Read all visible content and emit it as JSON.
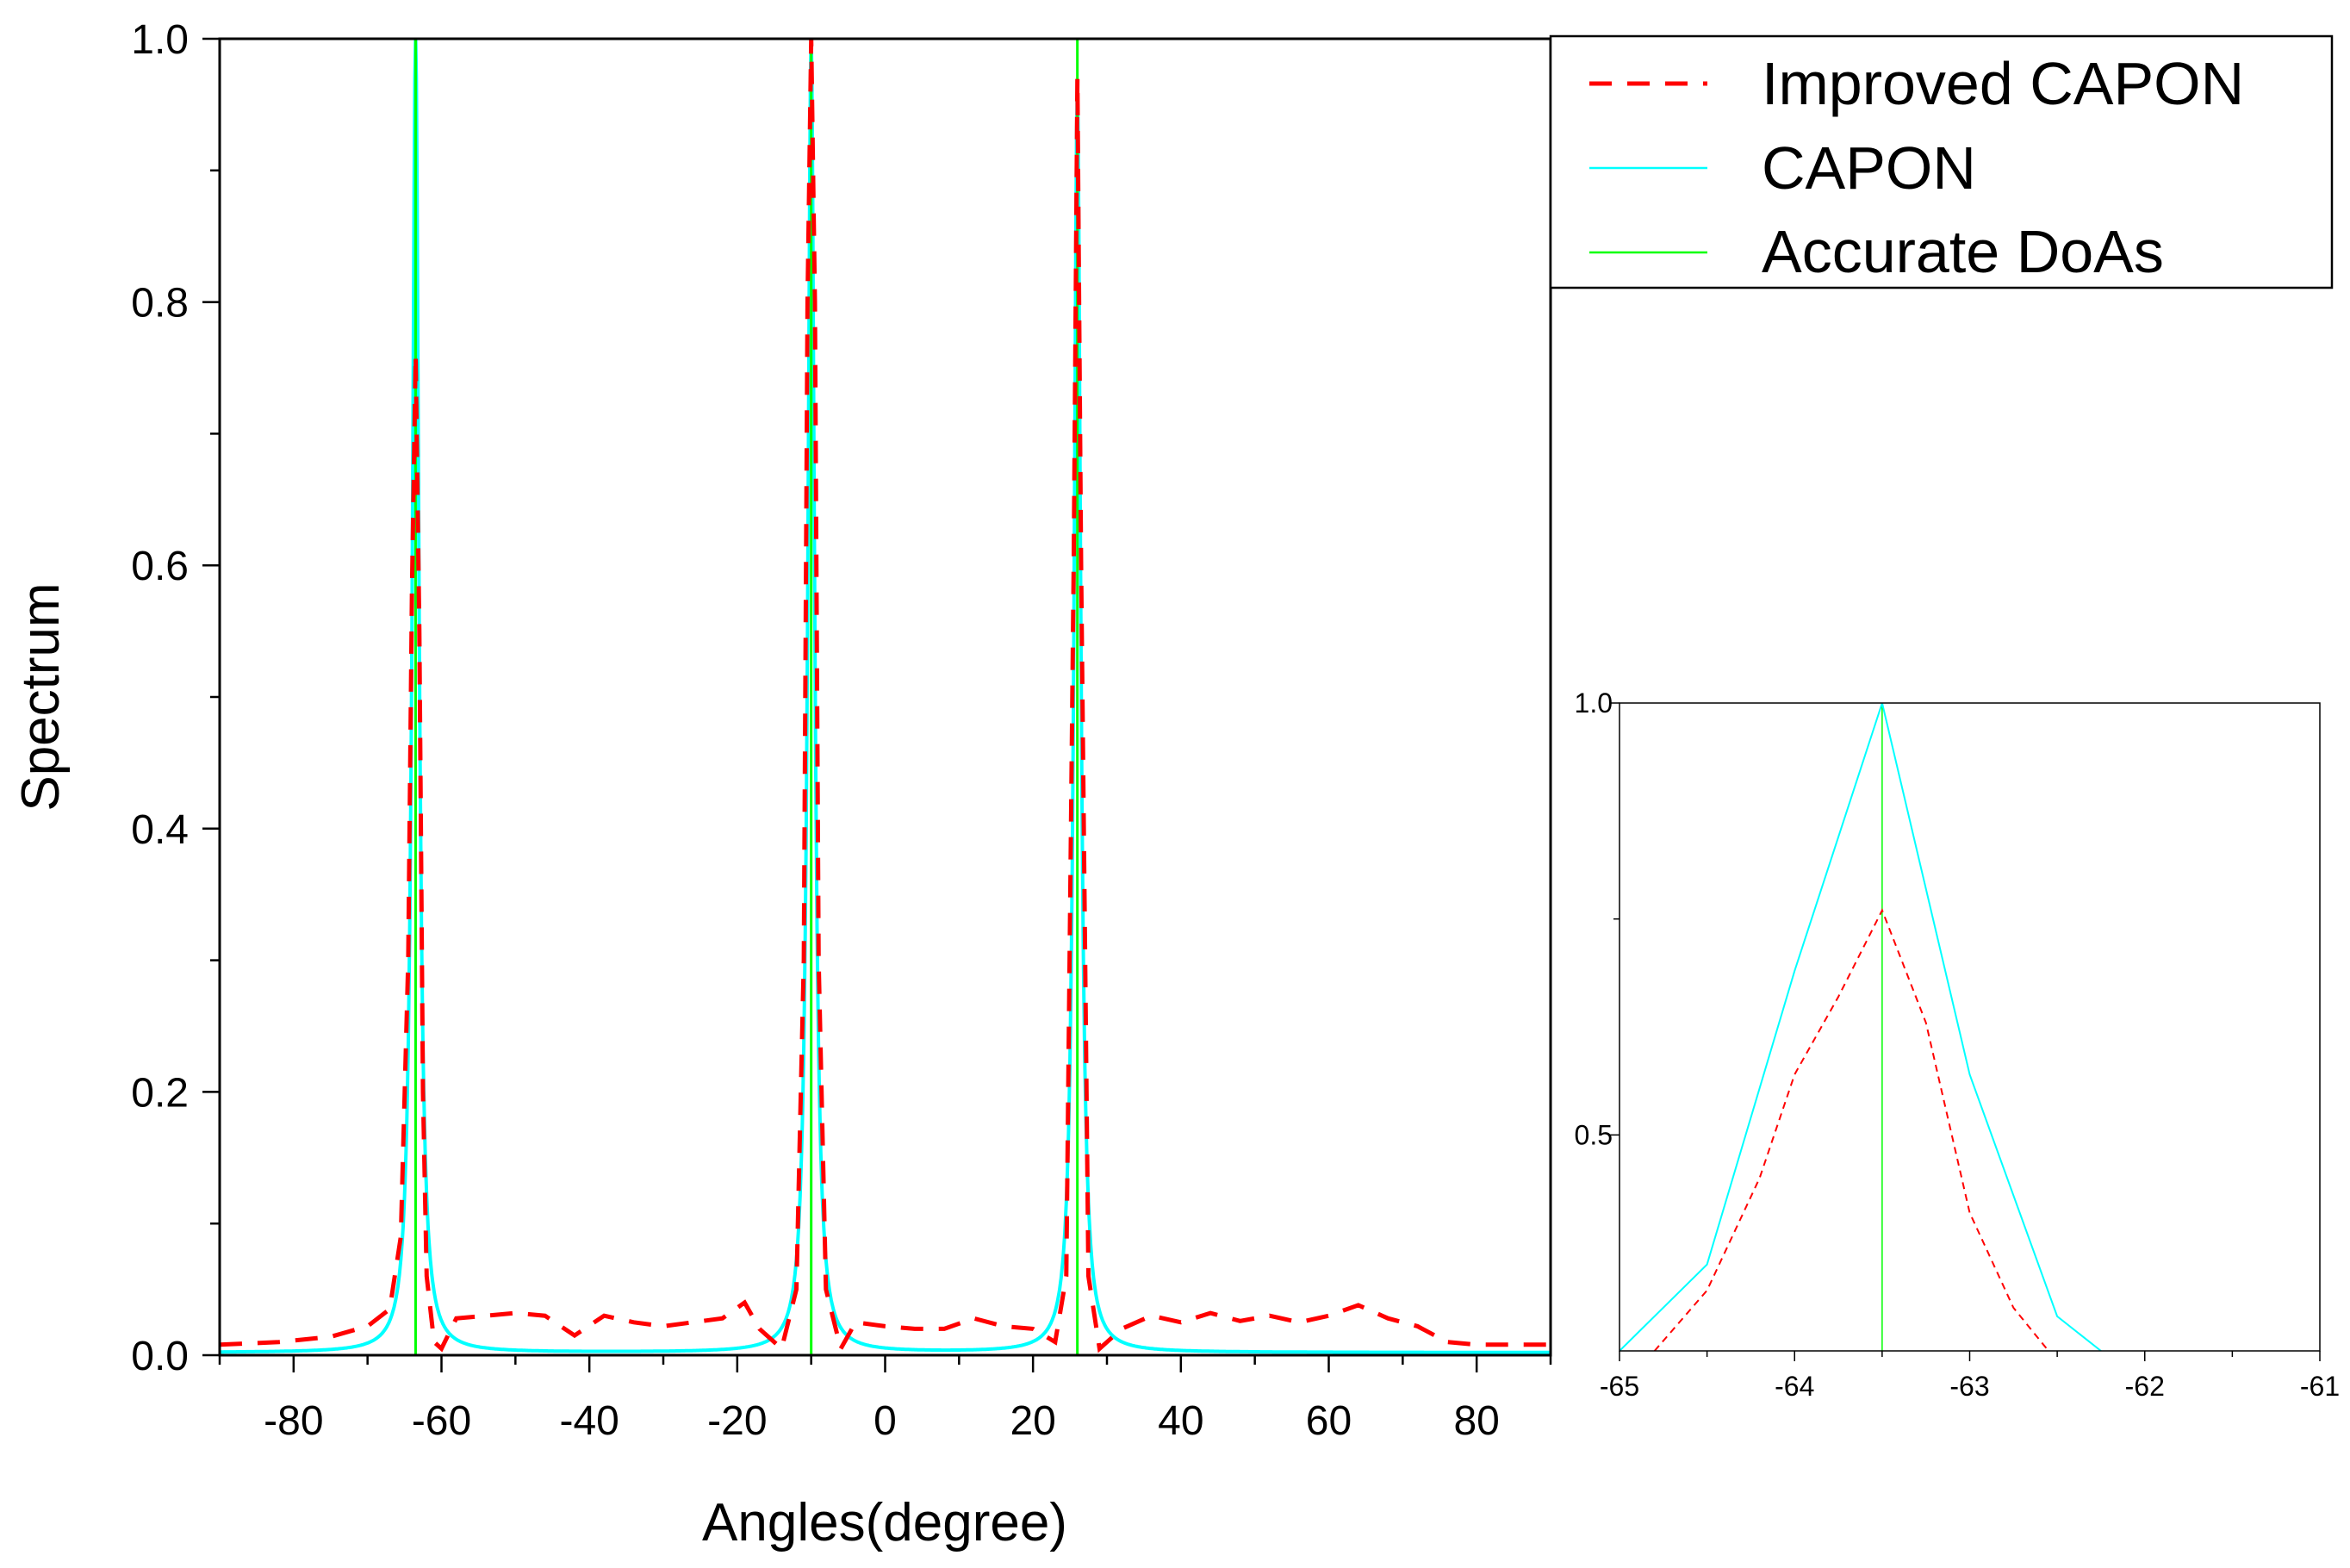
{
  "chart_data": [
    {
      "type": "line",
      "title": "",
      "xlabel": "Angles(degree)",
      "ylabel": "Spectrum",
      "xlim": [
        -90,
        90
      ],
      "ylim": [
        0,
        1.0
      ],
      "x_ticks": [
        -80,
        -60,
        -40,
        -20,
        0,
        20,
        40,
        60,
        80
      ],
      "y_ticks": [
        0.0,
        0.2,
        0.4,
        0.6,
        0.8,
        1.0
      ],
      "x_tick_labels": [
        "-80",
        "-60",
        "-40",
        "-20",
        "0",
        "20",
        "40",
        "60",
        "80"
      ],
      "y_tick_labels": [
        "0.0",
        "0.2",
        "0.4",
        "0.6",
        "0.8",
        "1.0"
      ],
      "legend": {
        "position": "top-right outside",
        "entries": [
          "Improved CAPON",
          "CAPON",
          "Accurate DoAs"
        ]
      },
      "true_doas": [
        -63.5,
        -10,
        26
      ],
      "series": [
        {
          "name": "Improved CAPON",
          "style": "dashed",
          "color": "#ff0000",
          "x": [
            -90,
            -82,
            -75,
            -70,
            -67,
            -65.5,
            -64.5,
            -64,
            -63.5,
            -63,
            -62.5,
            -62,
            -61,
            -60,
            -58,
            -54,
            -50,
            -46,
            -42,
            -38,
            -34,
            -30,
            -26,
            -22,
            -19,
            -17,
            -14,
            -12,
            -11,
            -10.5,
            -10,
            -9.5,
            -9,
            -8,
            -6,
            -4,
            0,
            4,
            8,
            12,
            16,
            20,
            23,
            24.5,
            25.5,
            26,
            26.5,
            27.5,
            29,
            32,
            36,
            40,
            44,
            48,
            52,
            56,
            60,
            64,
            68,
            72,
            76,
            80,
            84,
            90
          ],
          "y": [
            0.008,
            0.01,
            0.014,
            0.022,
            0.035,
            0.09,
            0.3,
            0.58,
            0.76,
            0.55,
            0.2,
            0.06,
            0.01,
            0.005,
            0.028,
            0.03,
            0.032,
            0.03,
            0.015,
            0.03,
            0.025,
            0.022,
            0.025,
            0.028,
            0.04,
            0.02,
            0.005,
            0.05,
            0.3,
            0.8,
            1.0,
            0.8,
            0.3,
            0.05,
            0.005,
            0.025,
            0.022,
            0.02,
            0.02,
            0.028,
            0.022,
            0.02,
            0.01,
            0.06,
            0.6,
            0.97,
            0.6,
            0.06,
            0.005,
            0.02,
            0.03,
            0.025,
            0.032,
            0.026,
            0.03,
            0.025,
            0.03,
            0.038,
            0.028,
            0.022,
            0.01,
            0.008,
            0.008,
            0.008
          ]
        },
        {
          "name": "CAPON",
          "style": "solid",
          "color": "#00ffff",
          "peaks": [
            {
              "x": -63.5,
              "y": 1.0
            },
            {
              "x": -10,
              "y": 1.0
            },
            {
              "x": 26,
              "y": 0.96
            }
          ],
          "baseline": 0.002
        },
        {
          "name": "Accurate DoAs",
          "style": "solid",
          "color": "#00ff00",
          "x": [
            -63.5,
            -10,
            26
          ],
          "y": [
            1.0,
            1.0,
            1.0
          ]
        }
      ]
    },
    {
      "type": "line",
      "title": "",
      "xlabel": "",
      "ylabel": "",
      "xlim": [
        -65,
        -61
      ],
      "ylim": [
        0.25,
        1.0
      ],
      "x_ticks": [
        -65,
        -64,
        -63,
        -62,
        -61
      ],
      "y_ticks": [
        0.5,
        1.0
      ],
      "x_tick_labels": [
        "-65",
        "-64",
        "-63",
        "-62",
        "-61"
      ],
      "y_tick_labels": [
        "0.5",
        "1.0"
      ],
      "series": [
        {
          "name": "Improved CAPON",
          "style": "dashed",
          "color": "#ff0000",
          "x": [
            -64.8,
            -64.5,
            -64.2,
            -64.0,
            -63.75,
            -63.5,
            -63.25,
            -63.0,
            -62.75,
            -62.55
          ],
          "y": [
            0.25,
            0.32,
            0.45,
            0.57,
            0.66,
            0.76,
            0.63,
            0.41,
            0.3,
            0.25
          ]
        },
        {
          "name": "CAPON",
          "style": "solid",
          "color": "#00ffff",
          "x": [
            -65.0,
            -64.5,
            -64.0,
            -63.5,
            -63.0,
            -62.5,
            -62.25
          ],
          "y": [
            0.25,
            0.35,
            0.69,
            1.0,
            0.57,
            0.29,
            0.25
          ]
        },
        {
          "name": "Accurate DoAs",
          "style": "solid",
          "color": "#00ff00",
          "x": [
            -63.5,
            -63.5
          ],
          "y": [
            0.25,
            1.0
          ]
        }
      ]
    }
  ]
}
